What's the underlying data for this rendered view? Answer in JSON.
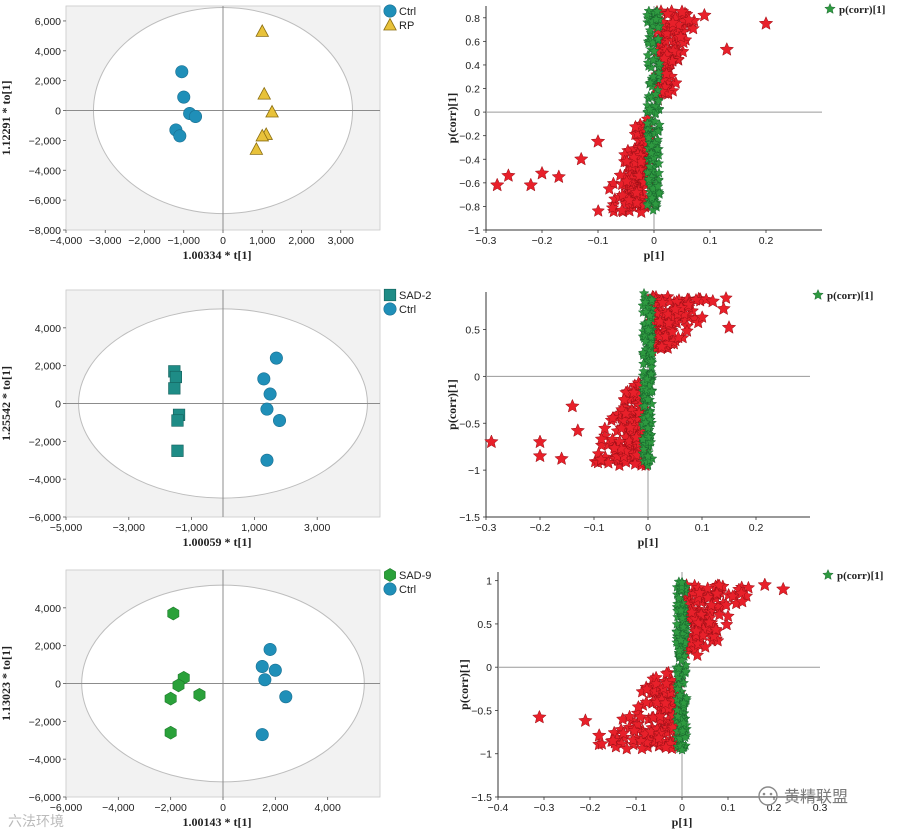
{
  "chart_data": [
    {
      "type": "scatter",
      "subtype": "score",
      "xlabel": "1.00334 * t[1]",
      "ylabel": "1.12291 * to[1]",
      "xlim": [
        -4000,
        4000
      ],
      "ylim": [
        -8000,
        7000
      ],
      "xticks": [
        -4000,
        -3000,
        -2000,
        -1000,
        0,
        1000,
        2000,
        3000
      ],
      "xtick_labels": [
        "−4,000",
        "−3,000",
        "−2,000",
        "−1,000",
        "0",
        "1,000",
        "2,000",
        "3,000"
      ],
      "yticks": [
        6000,
        4000,
        2000,
        0,
        -2000,
        -4000,
        -6000,
        -8000
      ],
      "ytick_labels": [
        "6,000",
        "4,000",
        "2,000",
        "0",
        "−2,000",
        "−4,000",
        "−6,000",
        "−8,000"
      ],
      "ellipse": {
        "rx": 3300,
        "ry": 6900
      },
      "series": [
        {
          "name": "Ctrl",
          "marker": "circle",
          "color": "#1f8fb8",
          "points": [
            [
              -1050,
              2600
            ],
            [
              -1000,
              900
            ],
            [
              -850,
              -200
            ],
            [
              -700,
              -400
            ],
            [
              -1200,
              -1300
            ],
            [
              -1100,
              -1700
            ]
          ]
        },
        {
          "name": "RP",
          "marker": "triangle",
          "color": "#e8c23a",
          "points": [
            [
              1000,
              5300
            ],
            [
              1050,
              1100
            ],
            [
              1250,
              -100
            ],
            [
              1100,
              -1600
            ],
            [
              1000,
              -1700
            ],
            [
              850,
              -2600
            ]
          ]
        }
      ]
    },
    {
      "type": "scatter",
      "subtype": "s-plot",
      "xlabel": "p[1]",
      "ylabel": "p(corr)[1]",
      "xlim": [
        -0.3,
        0.3
      ],
      "ylim": [
        -1,
        0.9
      ],
      "xticks": [
        -0.3,
        -0.2,
        -0.1,
        0,
        0.1,
        0.2
      ],
      "xtick_labels": [
        "−0.3",
        "−0.2",
        "−0.1",
        "0",
        "0.1",
        "0.2"
      ],
      "yticks": [
        0.8,
        0.6,
        0.4,
        0.2,
        0,
        -0.2,
        -0.4,
        -0.6,
        -0.8,
        -1
      ],
      "ytick_labels": [
        "0.8",
        "0.6",
        "0.4",
        "0.2",
        "0",
        "−0.2",
        "−0.4",
        "−0.6",
        "−0.8",
        "−1"
      ],
      "legend": "p(corr)[1]",
      "spine": {
        "pmin": -0.012,
        "pmax": 0.01,
        "corr_min": -0.85,
        "corr_max": 0.86
      },
      "upper": {
        "corr_lo": 0.1,
        "corr_hi": 0.86,
        "p_max": 0.09
      },
      "lower": {
        "corr_lo": -0.85,
        "corr_hi": -0.05,
        "p_min": -0.1
      },
      "extremes": [
        [
          0.2,
          0.75
        ],
        [
          0.13,
          0.53
        ],
        [
          0.09,
          0.82
        ],
        [
          0.05,
          0.85
        ],
        [
          -0.28,
          -0.62
        ],
        [
          -0.26,
          -0.54
        ],
        [
          -0.22,
          -0.62
        ],
        [
          -0.2,
          -0.52
        ],
        [
          -0.17,
          -0.55
        ],
        [
          -0.1,
          -0.25
        ],
        [
          -0.13,
          -0.4
        ]
      ],
      "seed": 11
    },
    {
      "type": "scatter",
      "subtype": "score",
      "xlabel": "1.00059 * t[1]",
      "ylabel": "1.25542 * to[1]",
      "xlim": [
        -5000,
        5000
      ],
      "ylim": [
        -6000,
        6000
      ],
      "xticks": [
        -5000,
        -3000,
        -1000,
        1000,
        3000
      ],
      "xtick_labels": [
        "−5,000",
        "−3,000",
        "−1,000",
        "1,000",
        "3,000"
      ],
      "yticks": [
        4000,
        2000,
        0,
        -2000,
        -4000,
        -6000
      ],
      "ytick_labels": [
        "4,000",
        "2,000",
        "0",
        "−2,000",
        "−4,000",
        "−6,000"
      ],
      "ellipse": {
        "rx": 4600,
        "ry": 5000
      },
      "series": [
        {
          "name": "SAD-2",
          "marker": "square",
          "color": "#1e8c86",
          "points": [
            [
              -1550,
              1700
            ],
            [
              -1500,
              1400
            ],
            [
              -1550,
              800
            ],
            [
              -1400,
              -600
            ],
            [
              -1450,
              -900
            ],
            [
              -1450,
              -2500
            ]
          ]
        },
        {
          "name": "Ctrl",
          "marker": "circle",
          "color": "#1f8fb8",
          "points": [
            [
              1700,
              2400
            ],
            [
              1300,
              1300
            ],
            [
              1500,
              500
            ],
            [
              1400,
              -300
            ],
            [
              1800,
              -900
            ],
            [
              1400,
              -3000
            ]
          ]
        }
      ]
    },
    {
      "type": "scatter",
      "subtype": "s-plot",
      "xlabel": "p[1]",
      "ylabel": "p(corr)[1]",
      "xlim": [
        -0.3,
        0.3
      ],
      "ylim": [
        -1.5,
        0.9
      ],
      "xticks": [
        -0.3,
        -0.2,
        -0.1,
        0,
        0.1,
        0.2
      ],
      "xtick_labels": [
        "−0.3",
        "−0.2",
        "−0.1",
        "0",
        "0.1",
        "0.2"
      ],
      "yticks": [
        0.5,
        0,
        -0.5,
        -1,
        -1.5
      ],
      "ytick_labels": [
        "0.5",
        "0",
        "−0.5",
        "−1",
        "−1.5"
      ],
      "legend": "p(corr)[1]",
      "spine": {
        "pmin": -0.01,
        "pmax": 0.008,
        "corr_min": -0.97,
        "corr_max": 0.9
      },
      "upper": {
        "corr_lo": 0.25,
        "corr_hi": 0.85,
        "p_max": 0.15
      },
      "lower": {
        "corr_lo": -0.95,
        "corr_hi": -0.05,
        "p_min": -0.12
      },
      "extremes": [
        [
          0.14,
          0.72
        ],
        [
          0.15,
          0.52
        ],
        [
          0.12,
          0.8
        ],
        [
          -0.29,
          -0.7
        ],
        [
          -0.2,
          -0.85
        ],
        [
          -0.16,
          -0.88
        ],
        [
          -0.2,
          -0.7
        ],
        [
          -0.13,
          -0.58
        ],
        [
          -0.14,
          -0.32
        ]
      ],
      "seed": 23
    },
    {
      "type": "scatter",
      "subtype": "score",
      "xlabel": "1.00143 * t[1]",
      "ylabel": "1.13023 * to[1]",
      "xlim": [
        -6000,
        6000
      ],
      "ylim": [
        -6000,
        6000
      ],
      "xticks": [
        -6000,
        -4000,
        -2000,
        0,
        2000,
        4000
      ],
      "xtick_labels": [
        "−6,000",
        "−4,000",
        "−2,000",
        "0",
        "2,000",
        "4,000"
      ],
      "yticks": [
        4000,
        2000,
        0,
        -2000,
        -4000,
        -6000
      ],
      "ytick_labels": [
        "4,000",
        "2,000",
        "0",
        "−2,000",
        "−4,000",
        "−6,000"
      ],
      "ellipse": {
        "rx": 5400,
        "ry": 5200
      },
      "series": [
        {
          "name": "SAD-9",
          "marker": "hexagon",
          "color": "#2aa13a",
          "points": [
            [
              -1900,
              3700
            ],
            [
              -1500,
              300
            ],
            [
              -1700,
              -100
            ],
            [
              -900,
              -600
            ],
            [
              -2000,
              -800
            ],
            [
              -2000,
              -2600
            ]
          ]
        },
        {
          "name": "Ctrl",
          "marker": "circle",
          "color": "#1f8fb8",
          "points": [
            [
              1800,
              1800
            ],
            [
              1500,
              900
            ],
            [
              2000,
              700
            ],
            [
              1600,
              200
            ],
            [
              2400,
              -700
            ],
            [
              1500,
              -2700
            ]
          ]
        }
      ]
    },
    {
      "type": "scatter",
      "subtype": "s-plot",
      "xlabel": "p[1]",
      "ylabel": "p(corr)[1]",
      "xlim": [
        -0.4,
        0.3
      ],
      "ylim": [
        -1.5,
        1.1
      ],
      "xticks": [
        -0.4,
        -0.3,
        -0.2,
        -0.1,
        0,
        0.1,
        0.2,
        0.3
      ],
      "xtick_labels": [
        "−0.4",
        "−0.3",
        "−0.2",
        "−0.1",
        "0",
        "0.1",
        "0.2",
        "0.3"
      ],
      "yticks": [
        1,
        0.5,
        0,
        -0.5,
        -1,
        -1.5
      ],
      "ytick_labels": [
        "1",
        "0.5",
        "0",
        "−0.5",
        "−1",
        "−1.5"
      ],
      "legend": "p(corr)[1]",
      "spine": {
        "pmin": -0.012,
        "pmax": 0.01,
        "corr_min": -0.98,
        "corr_max": 0.99
      },
      "upper": {
        "corr_lo": 0.1,
        "corr_hi": 0.95,
        "p_max": 0.18
      },
      "lower": {
        "corr_lo": -0.95,
        "corr_hi": -0.05,
        "p_min": -0.2
      },
      "extremes": [
        [
          0.22,
          0.9
        ],
        [
          0.18,
          0.95
        ],
        [
          -0.31,
          -0.58
        ],
        [
          -0.21,
          -0.62
        ],
        [
          -0.18,
          -0.79
        ],
        [
          -0.15,
          -0.85
        ]
      ],
      "seed": 37
    }
  ],
  "watermarks": {
    "left": "六法环境",
    "right": "黄精联盟"
  }
}
